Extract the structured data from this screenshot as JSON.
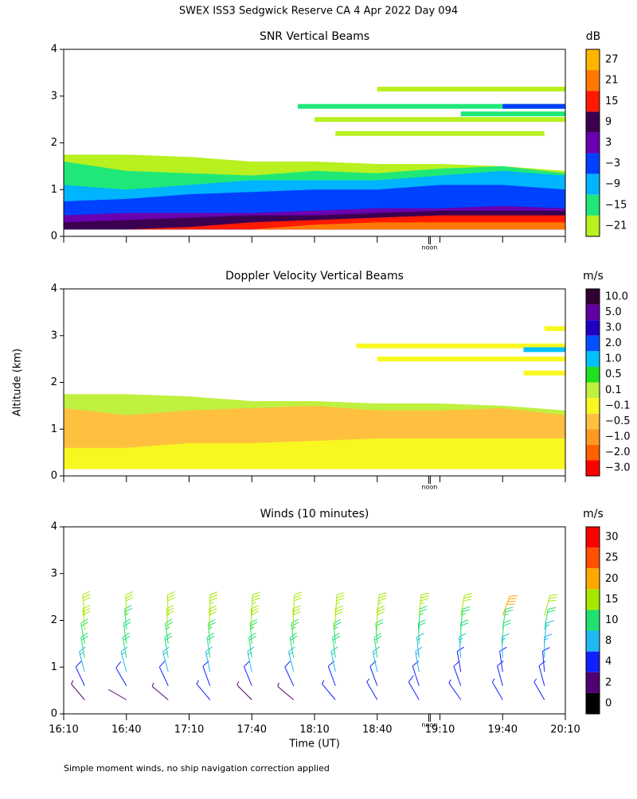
{
  "title": "SWEX ISS3 Sedgwick Reserve CA   4 Apr 2022 Day 094",
  "footnote": "Simple moment winds, no ship navigation correction applied",
  "chart_data": [
    {
      "type": "heatmap",
      "title": "SNR Vertical Beams",
      "unit": "dB",
      "xlim": [
        970,
        1210
      ],
      "ylim": [
        0,
        4
      ],
      "yticks": [
        0,
        1,
        2,
        3,
        4
      ],
      "xticks": [
        970,
        1000,
        1030,
        1060,
        1090,
        1120,
        1150,
        1180,
        1210
      ],
      "noon": {
        "value": 1145,
        "label": "noon"
      },
      "levels": [
        27,
        21,
        15,
        9,
        3,
        {
          "value": -3,
          "label": "−3"
        },
        {
          "value": -9,
          "label": "−9"
        },
        {
          "value": -15,
          "label": "−15"
        },
        {
          "value": -21,
          "label": "−21"
        }
      ],
      "colors": [
        "#ffb400",
        "#ff7800",
        "#ff1a00",
        "#3c0050",
        "#6a00b0",
        "#0040ff",
        "#00b4ff",
        "#20e878",
        "#b8f020"
      ],
      "base": 0.15,
      "samples_x": [
        970,
        1000,
        1030,
        1060,
        1090,
        1120,
        1150,
        1180,
        1210
      ],
      "layers": [
        {
          "level": 8,
          "top": [
            1.75,
            1.75,
            1.7,
            1.6,
            1.6,
            1.55,
            1.55,
            1.5,
            1.4
          ]
        },
        {
          "level": 7,
          "top": [
            1.6,
            1.4,
            1.35,
            1.3,
            1.4,
            1.35,
            1.45,
            1.5,
            1.35
          ]
        },
        {
          "level": 6,
          "top": [
            1.1,
            1.0,
            1.1,
            1.2,
            1.2,
            1.2,
            1.3,
            1.4,
            1.3
          ]
        },
        {
          "level": 5,
          "top": [
            0.75,
            0.8,
            0.9,
            0.95,
            1.0,
            1.0,
            1.1,
            1.1,
            1.0
          ]
        },
        {
          "level": 4,
          "top": [
            0.45,
            0.5,
            0.5,
            0.5,
            0.55,
            0.6,
            0.6,
            0.65,
            0.6
          ]
        },
        {
          "level": 3,
          "top": [
            0.3,
            0.35,
            0.4,
            0.45,
            0.45,
            0.5,
            0.55,
            0.55,
            0.55
          ]
        },
        {
          "level": 2,
          "top": [
            0.15,
            0.15,
            0.2,
            0.3,
            0.35,
            0.4,
            0.45,
            0.45,
            0.45
          ]
        },
        {
          "level": 1,
          "top": [
            0.15,
            0.15,
            0.15,
            0.15,
            0.25,
            0.3,
            0.3,
            0.3,
            0.3
          ]
        }
      ],
      "streaks": [
        {
          "x": [
            1082,
            1210
          ],
          "y": 2.78,
          "level": 7
        },
        {
          "x": [
            1090,
            1210
          ],
          "y": 2.5,
          "level": 8
        },
        {
          "x": [
            1120,
            1210
          ],
          "y": 3.15,
          "level": 8
        },
        {
          "x": [
            1180,
            1210
          ],
          "y": 2.78,
          "level": 5
        },
        {
          "x": [
            1100,
            1200
          ],
          "y": 2.2,
          "level": 8
        },
        {
          "x": [
            1160,
            1210
          ],
          "y": 2.62,
          "level": 7
        }
      ]
    },
    {
      "type": "heatmap",
      "title": "Doppler Velocity Vertical Beams",
      "unit": "m/s",
      "ylabel": "Altitude (km)",
      "xlim": [
        970,
        1210
      ],
      "ylim": [
        0,
        4
      ],
      "yticks": [
        0,
        1,
        2,
        3,
        4
      ],
      "xticks": [
        970,
        1000,
        1030,
        1060,
        1090,
        1120,
        1150,
        1180,
        1210
      ],
      "noon": {
        "value": 1145,
        "label": "noon"
      },
      "levels": [
        {
          "value": 10,
          "label": "10.0"
        },
        {
          "value": 5,
          "label": "5.0"
        },
        {
          "value": 3,
          "label": "3.0"
        },
        {
          "value": 2,
          "label": "2.0"
        },
        {
          "value": 1,
          "label": "1.0"
        },
        0.5,
        0.1,
        {
          "value": -0.1,
          "label": "−0.1"
        },
        {
          "value": -0.5,
          "label": "−0.5"
        },
        {
          "value": -1,
          "label": "−1.0"
        },
        {
          "value": -2,
          "label": "−2.0"
        },
        {
          "value": -3,
          "label": "−3.0"
        }
      ],
      "colors": [
        "#300030",
        "#6000a0",
        "#2000c0",
        "#0050ff",
        "#00c0ff",
        "#20e020",
        "#c0f040",
        "#f8f820",
        "#ffc040",
        "#ff9a20",
        "#ff6000",
        "#ff0000"
      ],
      "base": 0.15,
      "samples_x": [
        970,
        1000,
        1030,
        1060,
        1090,
        1120,
        1150,
        1180,
        1210
      ],
      "layers": [
        {
          "level": 6,
          "top": [
            1.75,
            1.75,
            1.7,
            1.6,
            1.6,
            1.55,
            1.55,
            1.5,
            1.4
          ]
        },
        {
          "level": 8,
          "top": [
            1.45,
            1.3,
            1.4,
            1.45,
            1.5,
            1.4,
            1.4,
            1.45,
            1.3
          ]
        },
        {
          "level": 7,
          "top": [
            0.6,
            0.6,
            0.7,
            0.7,
            0.75,
            0.8,
            0.8,
            0.8,
            0.8
          ]
        }
      ],
      "streaks": [
        {
          "x": [
            1110,
            1210
          ],
          "y": 2.78,
          "level": 7
        },
        {
          "x": [
            1120,
            1210
          ],
          "y": 2.5,
          "level": 7
        },
        {
          "x": [
            1190,
            1210
          ],
          "y": 2.2,
          "level": 7
        },
        {
          "x": [
            1190,
            1210
          ],
          "y": 2.7,
          "level": 4
        },
        {
          "x": [
            1200,
            1210
          ],
          "y": 3.15,
          "level": 7
        }
      ]
    },
    {
      "type": "barbs",
      "title": "Winds (10 minutes)",
      "unit": "m/s",
      "xlabel": "Time (UT)",
      "show_xtick_labels": true,
      "xlim": [
        970,
        1210
      ],
      "ylim": [
        0,
        4
      ],
      "yticks": [
        0,
        1,
        2,
        3,
        4
      ],
      "xticks": [
        {
          "value": 970,
          "label": "16:10"
        },
        {
          "value": 1000,
          "label": "16:40"
        },
        {
          "value": 1030,
          "label": "17:10"
        },
        {
          "value": 1060,
          "label": "17:40"
        },
        {
          "value": 1090,
          "label": "18:10"
        },
        {
          "value": 1120,
          "label": "18:40"
        },
        {
          "value": 1150,
          "label": "19:10"
        },
        {
          "value": 1180,
          "label": "19:40"
        },
        {
          "value": 1210,
          "label": "20:10"
        }
      ],
      "noon": {
        "value": 1145,
        "label": "noon"
      },
      "levels": [
        30,
        25,
        20,
        15,
        10,
        8,
        4,
        2,
        0
      ],
      "colors": [
        "#ff0000",
        "#ff5000",
        "#ffa800",
        "#a8e800",
        "#20e070",
        "#20b8f0",
        "#1020ff",
        "#500070",
        "#000000"
      ],
      "heights": [
        0.3,
        0.6,
        0.9,
        1.2,
        1.5,
        1.8,
        2.1
      ],
      "barbs": [
        {
          "x": 980,
          "speed": [
            3,
            5,
            9,
            11,
            12,
            15,
            16
          ],
          "dir": [
            320,
            335,
            345,
            350,
            350,
            355,
            355
          ]
        },
        {
          "x": 1000,
          "speed": [
            2,
            5,
            8,
            10,
            12,
            14,
            16
          ],
          "dir": [
            300,
            330,
            345,
            350,
            352,
            355,
            358
          ]
        },
        {
          "x": 1020,
          "speed": [
            3,
            6,
            9,
            11,
            13,
            15,
            17
          ],
          "dir": [
            310,
            335,
            345,
            350,
            352,
            355,
            358
          ]
        },
        {
          "x": 1040,
          "speed": [
            4,
            6,
            9,
            11,
            13,
            16,
            18
          ],
          "dir": [
            320,
            340,
            348,
            352,
            355,
            358,
            0
          ]
        },
        {
          "x": 1060,
          "speed": [
            3,
            6,
            9,
            12,
            14,
            16,
            18
          ],
          "dir": [
            315,
            338,
            348,
            352,
            355,
            358,
            2
          ]
        },
        {
          "x": 1080,
          "speed": [
            3,
            5,
            8,
            11,
            13,
            15,
            17
          ],
          "dir": [
            310,
            335,
            346,
            350,
            354,
            358,
            2
          ]
        },
        {
          "x": 1100,
          "speed": [
            4,
            6,
            9,
            11,
            13,
            15,
            18
          ],
          "dir": [
            320,
            340,
            348,
            352,
            355,
            0,
            4
          ]
        },
        {
          "x": 1120,
          "speed": [
            4,
            6,
            8,
            10,
            12,
            15,
            19
          ],
          "dir": [
            330,
            340,
            348,
            352,
            356,
            0,
            5
          ]
        },
        {
          "x": 1140,
          "speed": [
            5,
            6,
            8,
            9,
            11,
            14,
            18
          ],
          "dir": [
            330,
            342,
            350,
            354,
            358,
            2,
            6
          ]
        },
        {
          "x": 1160,
          "speed": [
            4,
            6,
            7,
            9,
            10,
            13,
            17
          ],
          "dir": [
            325,
            340,
            350,
            355,
            0,
            5,
            10
          ]
        },
        {
          "x": 1180,
          "speed": [
            4,
            5,
            7,
            8,
            10,
            14,
            21
          ],
          "dir": [
            330,
            345,
            352,
            358,
            2,
            8,
            20
          ]
        },
        {
          "x": 1200,
          "speed": [
            4,
            5,
            6,
            8,
            9,
            12,
            16
          ],
          "dir": [
            330,
            345,
            355,
            0,
            5,
            10,
            15
          ]
        }
      ]
    }
  ]
}
